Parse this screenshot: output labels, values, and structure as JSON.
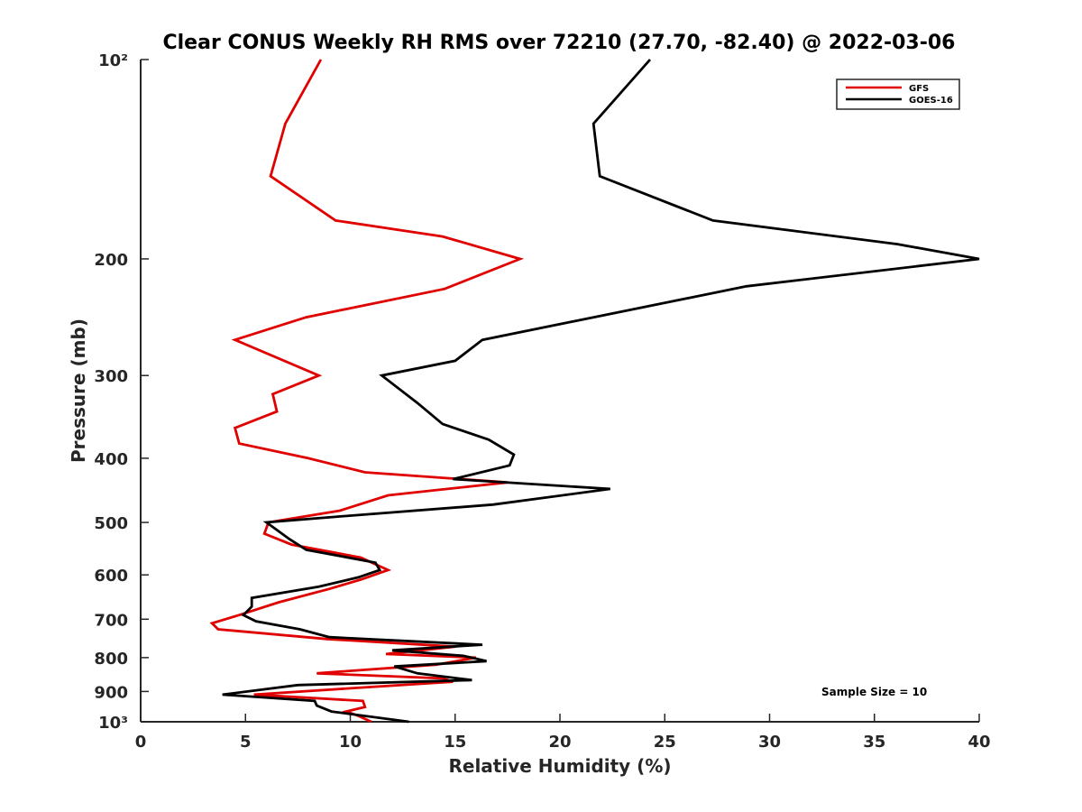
{
  "chart_data": {
    "type": "line",
    "title": "Clear CONUS Weekly RH RMS over 72210 (27.70, -82.40) @ 2022-03-06",
    "xlabel": "Relative Humidity (%)",
    "ylabel": "Pressure (mb)",
    "xlim": [
      0,
      40
    ],
    "ylim": [
      100,
      1000
    ],
    "y_scale": "log",
    "y_reversed": true,
    "x_ticks": [
      0,
      5,
      10,
      15,
      20,
      25,
      30,
      35,
      40
    ],
    "y_ticks": [
      100,
      200,
      300,
      400,
      500,
      600,
      700,
      800,
      900,
      1000
    ],
    "y_tick_labels": [
      "10²",
      "200",
      "300",
      "400",
      "500",
      "600",
      "700",
      "800",
      "900",
      "10³"
    ],
    "grid": false,
    "legend_position": "top-right",
    "annotation": "Sample Size = 10",
    "series": [
      {
        "name": "GFS",
        "color": "#e00000",
        "points": [
          [
            8.6,
            100
          ],
          [
            6.9,
            125
          ],
          [
            6.2,
            150
          ],
          [
            9.3,
            175
          ],
          [
            14.4,
            185
          ],
          [
            18.1,
            200
          ],
          [
            14.5,
            222
          ],
          [
            7.9,
            245
          ],
          [
            4.5,
            265
          ],
          [
            8.5,
            300
          ],
          [
            6.3,
            320
          ],
          [
            6.5,
            340
          ],
          [
            4.5,
            360
          ],
          [
            4.7,
            380
          ],
          [
            8.0,
            400
          ],
          [
            10.7,
            420
          ],
          [
            17.5,
            435
          ],
          [
            11.8,
            455
          ],
          [
            9.5,
            480
          ],
          [
            6.1,
            500
          ],
          [
            5.9,
            520
          ],
          [
            7.2,
            540
          ],
          [
            10.5,
            565
          ],
          [
            11.8,
            590
          ],
          [
            10.5,
            610
          ],
          [
            9.0,
            630
          ],
          [
            6.6,
            660
          ],
          [
            4.7,
            690
          ],
          [
            3.4,
            710
          ],
          [
            3.7,
            725
          ],
          [
            8.9,
            750
          ],
          [
            15.0,
            770
          ],
          [
            11.7,
            790
          ],
          [
            16.0,
            800
          ],
          [
            14.1,
            820
          ],
          [
            8.4,
            845
          ],
          [
            14.4,
            860
          ],
          [
            14.9,
            870
          ],
          [
            10.0,
            890
          ],
          [
            5.4,
            910
          ],
          [
            10.6,
            930
          ],
          [
            10.7,
            950
          ],
          [
            9.8,
            965
          ],
          [
            10.4,
            980
          ],
          [
            11.0,
            1000
          ]
        ]
      },
      {
        "name": "GOES-16",
        "color": "#000000",
        "points": [
          [
            24.3,
            100
          ],
          [
            21.6,
            125
          ],
          [
            21.9,
            150
          ],
          [
            27.3,
            175
          ],
          [
            36.1,
            190
          ],
          [
            40.0,
            200
          ],
          [
            28.9,
            220
          ],
          [
            16.3,
            265
          ],
          [
            15.0,
            285
          ],
          [
            11.5,
            300
          ],
          [
            13.2,
            330
          ],
          [
            14.4,
            355
          ],
          [
            16.6,
            375
          ],
          [
            17.8,
            395
          ],
          [
            17.6,
            410
          ],
          [
            14.9,
            430
          ],
          [
            22.4,
            445
          ],
          [
            16.8,
            470
          ],
          [
            9.4,
            490
          ],
          [
            6.0,
            500
          ],
          [
            7.1,
            530
          ],
          [
            7.9,
            550
          ],
          [
            11.2,
            575
          ],
          [
            11.4,
            590
          ],
          [
            10.4,
            605
          ],
          [
            8.5,
            625
          ],
          [
            5.3,
            650
          ],
          [
            5.3,
            670
          ],
          [
            4.9,
            690
          ],
          [
            5.5,
            705
          ],
          [
            7.6,
            725
          ],
          [
            9.0,
            745
          ],
          [
            16.3,
            765
          ],
          [
            12.0,
            780
          ],
          [
            15.4,
            795
          ],
          [
            16.5,
            810
          ],
          [
            12.1,
            825
          ],
          [
            13.2,
            845
          ],
          [
            15.8,
            865
          ],
          [
            7.5,
            880
          ],
          [
            3.9,
            910
          ],
          [
            8.3,
            930
          ],
          [
            8.4,
            945
          ],
          [
            9.1,
            965
          ],
          [
            12.8,
            1000
          ]
        ]
      }
    ]
  }
}
